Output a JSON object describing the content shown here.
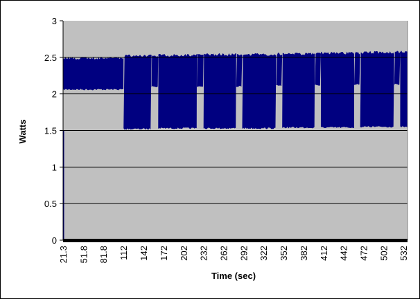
{
  "chart_data": {
    "type": "area",
    "title": "",
    "xlabel": "Time (sec)",
    "ylabel": "Watts",
    "ylim": [
      0,
      3
    ],
    "yticks": [
      "0",
      "0.5",
      "1",
      "1.5",
      "2",
      "2.5",
      "3"
    ],
    "xlim": [
      21.3,
      538
    ],
    "xtick_labels": [
      "21.3",
      "51.8",
      "81.8",
      "112",
      "142",
      "172",
      "202",
      "232",
      "262",
      "292",
      "322",
      "352",
      "382",
      "412",
      "442",
      "472",
      "502",
      "532"
    ],
    "grid": "horizontal",
    "legend": "none",
    "plot_background": "#c0c0c0",
    "series": [
      {
        "color": "#000080",
        "description_envelope": [
          {
            "t_start": 21.3,
            "t_end": 112,
            "min": 2.06,
            "max": 2.47
          },
          {
            "t_start": 112,
            "t_end": 154,
            "min": 1.52,
            "max": 2.5
          },
          {
            "t_start": 154,
            "t_end": 164,
            "min": 2.1,
            "max": 2.5
          },
          {
            "t_start": 164,
            "t_end": 222,
            "min": 1.53,
            "max": 2.51
          },
          {
            "t_start": 222,
            "t_end": 232,
            "min": 2.1,
            "max": 2.51
          },
          {
            "t_start": 232,
            "t_end": 281,
            "min": 1.53,
            "max": 2.52
          },
          {
            "t_start": 281,
            "t_end": 290,
            "min": 2.1,
            "max": 2.52
          },
          {
            "t_start": 290,
            "t_end": 341,
            "min": 1.53,
            "max": 2.52
          },
          {
            "t_start": 341,
            "t_end": 350,
            "min": 2.11,
            "max": 2.53
          },
          {
            "t_start": 350,
            "t_end": 399,
            "min": 1.54,
            "max": 2.53
          },
          {
            "t_start": 399,
            "t_end": 408,
            "min": 2.12,
            "max": 2.54
          },
          {
            "t_start": 408,
            "t_end": 458,
            "min": 1.54,
            "max": 2.54
          },
          {
            "t_start": 458,
            "t_end": 467,
            "min": 2.13,
            "max": 2.54
          },
          {
            "t_start": 467,
            "t_end": 518,
            "min": 1.55,
            "max": 2.55
          },
          {
            "t_start": 518,
            "t_end": 527,
            "min": 2.13,
            "max": 2.55
          },
          {
            "t_start": 527,
            "t_end": 538,
            "min": 1.55,
            "max": 2.56
          }
        ]
      }
    ]
  }
}
